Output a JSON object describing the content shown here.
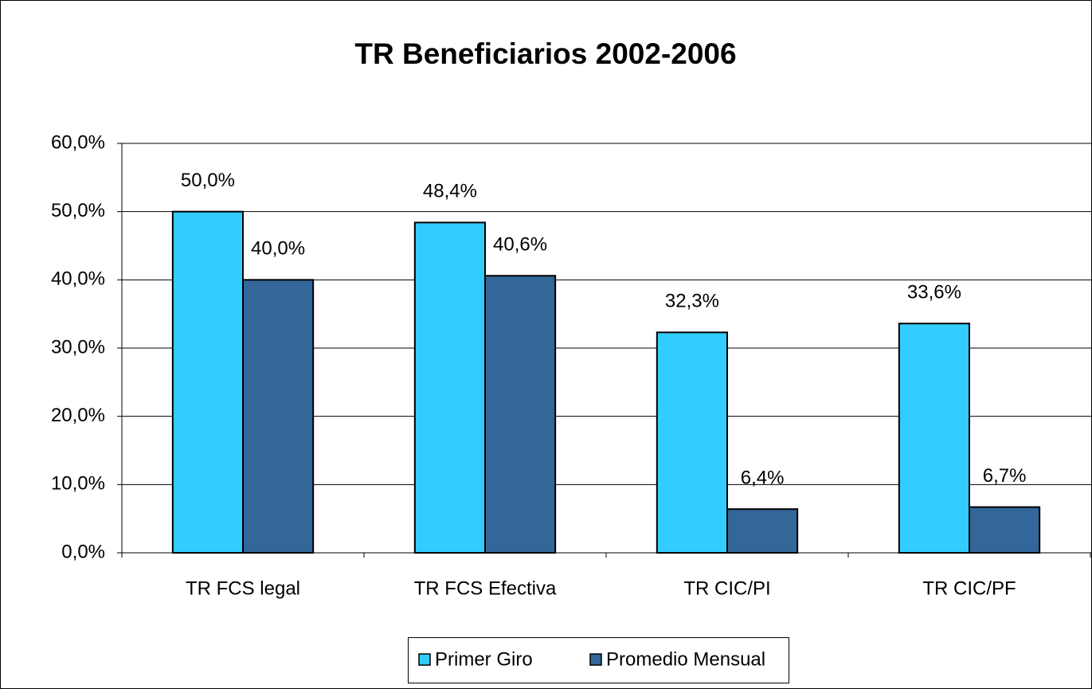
{
  "chart_data": {
    "type": "bar",
    "title": "TR Beneficiarios 2002-2006",
    "categories": [
      "TR FCS legal",
      "TR FCS Efectiva",
      "TR CIC/PI",
      "TR CIC/PF"
    ],
    "series": [
      {
        "name": "Primer Giro",
        "color": "#33ccff",
        "values": [
          50.0,
          48.4,
          32.3,
          33.6
        ],
        "value_labels": [
          "50,0%",
          "48,4%",
          "32,3%",
          "33,6%"
        ]
      },
      {
        "name": "Promedio Mensual",
        "color": "#336699",
        "values": [
          40.0,
          40.6,
          6.4,
          6.7
        ],
        "value_labels": [
          "40,0%",
          "40,6%",
          "6,4%",
          "6,7%"
        ]
      }
    ],
    "ylim": [
      0,
      60
    ],
    "yticks": [
      {
        "value": 0,
        "label": "0,0%"
      },
      {
        "value": 10,
        "label": "10,0%"
      },
      {
        "value": 20,
        "label": "20,0%"
      },
      {
        "value": 30,
        "label": "30,0%"
      },
      {
        "value": 40,
        "label": "40,0%"
      },
      {
        "value": 50,
        "label": "50,0%"
      },
      {
        "value": 60,
        "label": "60,0%"
      }
    ],
    "grid": true,
    "legend": "bottom"
  }
}
